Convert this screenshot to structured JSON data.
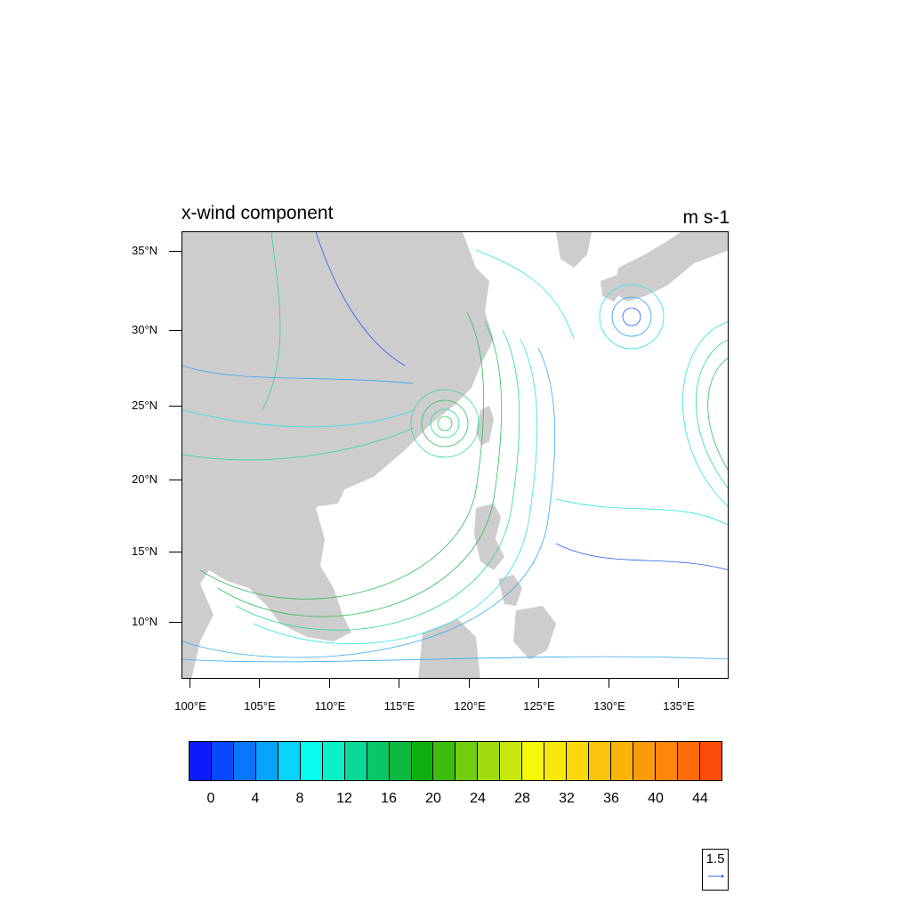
{
  "title_left": "x-wind component",
  "title_right": "m s-1",
  "lat_labels": [
    "35°N",
    "30°N",
    "25°N",
    "20°N",
    "15°N",
    "10°N"
  ],
  "lon_labels": [
    "100°E",
    "105°E",
    "110°E",
    "115°E",
    "120°E",
    "125°E",
    "130°E",
    "135°E"
  ],
  "colorbar": {
    "colors": [
      "#0b1bfa",
      "#0a48fb",
      "#0a76fb",
      "#08a4fb",
      "#0ad2fb",
      "#08fbf0",
      "#09f0c6",
      "#0ad89b",
      "#09c768",
      "#0cb83e",
      "#0eb00e",
      "#3dbe0e",
      "#71cd0e",
      "#a0dc0d",
      "#c8e70c",
      "#f4f80b",
      "#fbe80b",
      "#fbd80b",
      "#fbc30b",
      "#fbb30a",
      "#fb9a0a",
      "#fb860a",
      "#fb6c09",
      "#fb4c09"
    ],
    "labels": [
      "0",
      "4",
      "8",
      "12",
      "16",
      "20",
      "24",
      "28",
      "32",
      "36",
      "40",
      "44"
    ]
  },
  "reference_vector": {
    "value": "1.5"
  },
  "map": {
    "land_color": "#cdcdcd",
    "ocean_color": "#ffffff",
    "streamline_colors": [
      "#2a5bf0",
      "#35a7f2",
      "#2be3e3",
      "#2bd6a8",
      "#2fbf58"
    ]
  }
}
